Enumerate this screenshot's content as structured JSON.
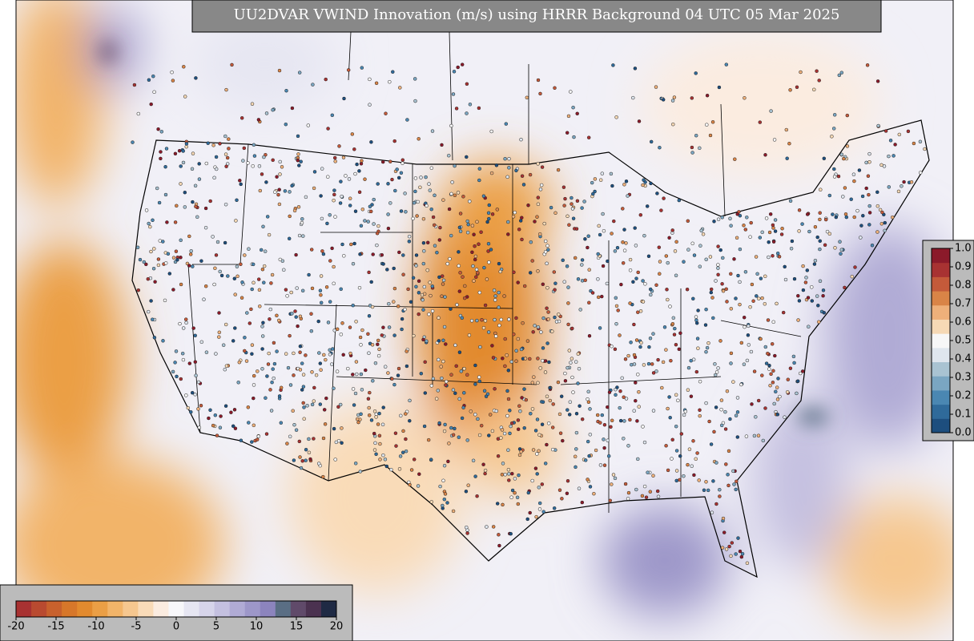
{
  "title": "UU2DVAR VWIND Innovation (m/s) using HRRR Background 04 UTC 05 Mar 2025",
  "innovation_colorbar": {
    "ticks": [
      "-20",
      "-15",
      "-10",
      "-5",
      "0",
      "5",
      "10",
      "15",
      "20"
    ]
  },
  "observation_colorbar": {
    "ticks": [
      "1.0",
      "0.9",
      "0.8",
      "0.7",
      "0.6",
      "0.5",
      "0.4",
      "0.3",
      "0.2",
      "0.1",
      "0.0"
    ]
  }
}
